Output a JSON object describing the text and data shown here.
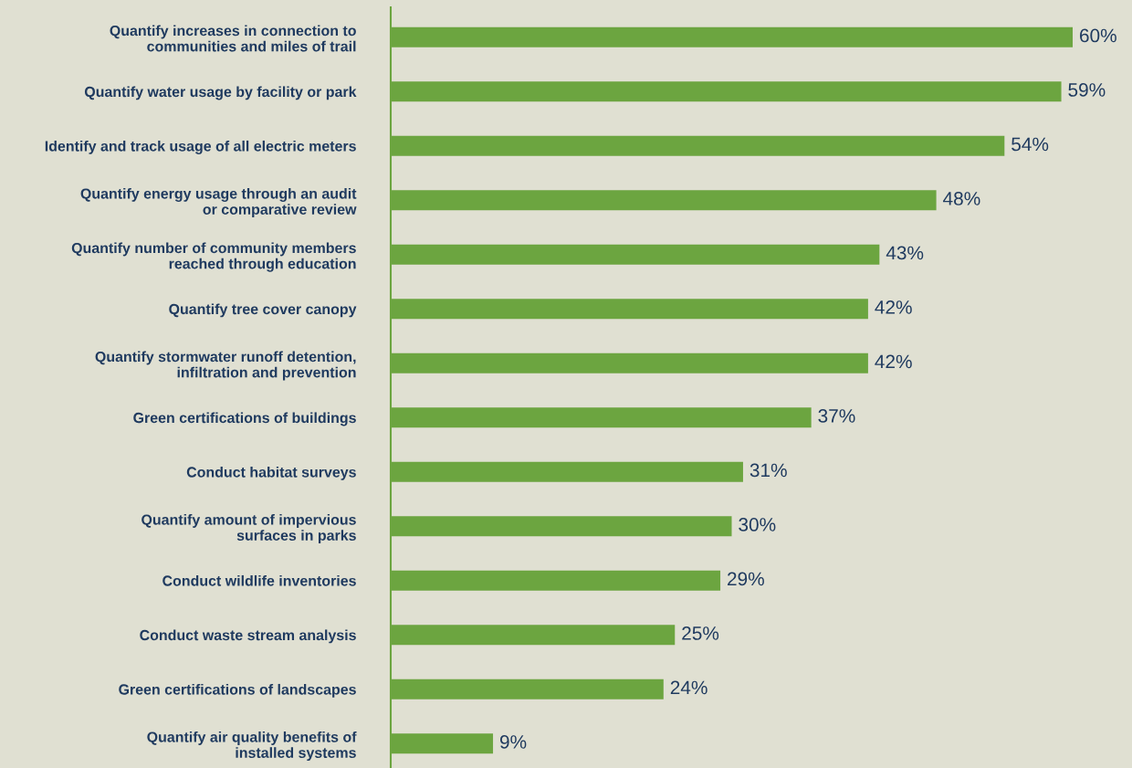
{
  "chart_data": {
    "type": "bar",
    "orientation": "horizontal",
    "categories": [
      "Quantify increases in connection to\ncommunities and miles of trail",
      "Quantify water usage by facility or park",
      "Identify and track usage of all electric meters",
      "Quantify energy usage through an audit\nor comparative review",
      "Quantify number of community members\nreached through education",
      "Quantify tree cover canopy",
      "Quantify stormwater runoff detention,\ninfiltration and prevention",
      "Green certifications of buildings",
      "Conduct habitat surveys",
      "Quantify amount of impervious\nsurfaces in parks",
      "Conduct wildlife inventories",
      "Conduct waste stream analysis",
      "Green certifications of landscapes",
      "Quantify air quality benefits of\ninstalled systems"
    ],
    "values": [
      60,
      59,
      54,
      48,
      43,
      42,
      42,
      37,
      31,
      30,
      29,
      25,
      24,
      9
    ],
    "value_labels": [
      "60%",
      "59%",
      "54%",
      "48%",
      "43%",
      "42%",
      "42%",
      "37%",
      "31%",
      "30%",
      "29%",
      "25%",
      "24%",
      "9%"
    ],
    "color": "#6ca540",
    "grid": false,
    "legend": false,
    "tick_labels": "y"
  }
}
